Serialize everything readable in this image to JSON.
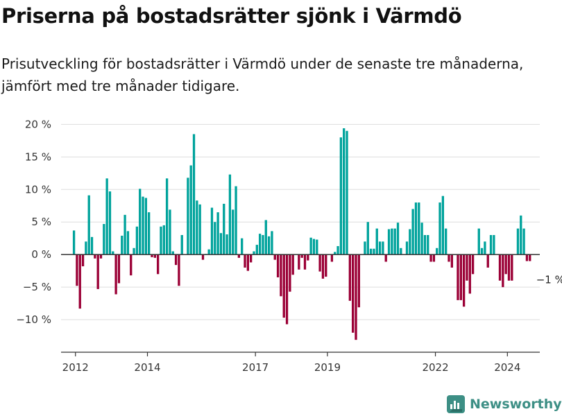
{
  "header": {
    "title": "Priserna på bostadsrätter sjönk i Värmdö",
    "subtitle": "Prisutveckling för bostadsrätter i Värmdö under de senaste tre månaderna, jämfört med tre månader tidigare."
  },
  "brand": {
    "name": "Newsworthy",
    "icon": "bar-chart-logo-icon"
  },
  "colors": {
    "positive": "#00a39c",
    "negative": "#9b0036",
    "grid": "#dddddd",
    "axis": "#333333",
    "brand": "#3d8f85"
  },
  "chart_data": {
    "type": "bar",
    "title": "Priserna på bostadsrätter sjönk i Värmdö",
    "xlabel": "",
    "ylabel": "",
    "ylim": [
      -15,
      21
    ],
    "yticks": [
      {
        "value": 20,
        "label": "20 %"
      },
      {
        "value": 15,
        "label": "15 %"
      },
      {
        "value": 10,
        "label": "10 %"
      },
      {
        "value": 5,
        "label": "5 %"
      },
      {
        "value": 0,
        "label": "0 %"
      },
      {
        "value": -5,
        "label": "−5 %"
      },
      {
        "value": -10,
        "label": "−10 %"
      }
    ],
    "xlim": [
      2011.6,
      2024.9
    ],
    "xticks": [
      {
        "value": 2012,
        "label": "2012"
      },
      {
        "value": 2014,
        "label": "2014"
      },
      {
        "value": 2017,
        "label": "2017"
      },
      {
        "value": 2019,
        "label": "2019"
      },
      {
        "value": 2022,
        "label": "2022"
      },
      {
        "value": 2024,
        "label": "2024"
      }
    ],
    "start": {
      "year": 2011,
      "month": 12
    },
    "grid": true,
    "legend": "none",
    "annotation": {
      "text": "−1 %",
      "series_index": -1
    },
    "values": [
      3.7,
      -4.8,
      -8.3,
      -1.8,
      2.0,
      9.1,
      2.7,
      -0.6,
      -5.3,
      -0.6,
      4.7,
      11.7,
      9.7,
      0.5,
      -6.1,
      -4.4,
      2.9,
      6.1,
      3.6,
      -3.2,
      1.0,
      4.3,
      10.1,
      8.9,
      8.7,
      6.5,
      -0.4,
      -0.5,
      -3.0,
      4.3,
      4.5,
      11.7,
      6.9,
      0.5,
      -1.6,
      -4.8,
      3.0,
      0.0,
      11.8,
      13.7,
      18.5,
      8.3,
      7.7,
      -0.8,
      0.1,
      0.8,
      7.2,
      5.0,
      6.5,
      3.3,
      7.8,
      3.1,
      12.3,
      6.9,
      10.5,
      -0.5,
      2.5,
      -2.0,
      -2.5,
      -1.2,
      0.5,
      1.5,
      3.2,
      3.0,
      5.3,
      2.8,
      3.6,
      -0.8,
      -3.5,
      -6.4,
      -9.7,
      -10.7,
      -5.7,
      -3.1,
      0.0,
      -2.3,
      -0.5,
      -2.3,
      -0.9,
      2.6,
      2.4,
      2.3,
      -2.6,
      -3.7,
      -3.4,
      0.0,
      -1.1,
      0.4,
      1.3,
      18.0,
      19.4,
      19.0,
      -7.1,
      -12.0,
      -13.1,
      -8.1,
      0.0,
      2.0,
      5.0,
      0.9,
      0.9,
      4.0,
      2.0,
      2.0,
      -1.1,
      3.9,
      4.0,
      4.0,
      4.9,
      1.0,
      0.0,
      2.0,
      3.9,
      7.0,
      8.0,
      8.0,
      4.9,
      3.0,
      3.0,
      -1.1,
      -1.1,
      1.0,
      8.0,
      9.0,
      4.0,
      -1.1,
      -2.0,
      0.0,
      -7.0,
      -7.0,
      -8.0,
      -4.0,
      -6.0,
      -3.0,
      0.0,
      4.0,
      1.0,
      2.0,
      -2.0,
      3.0,
      3.0,
      0.0,
      -4.0,
      -5.0,
      -3.0,
      -4.0,
      -4.0,
      0.0,
      4.0,
      6.0,
      4.0,
      -1.0,
      -1.0
    ]
  }
}
